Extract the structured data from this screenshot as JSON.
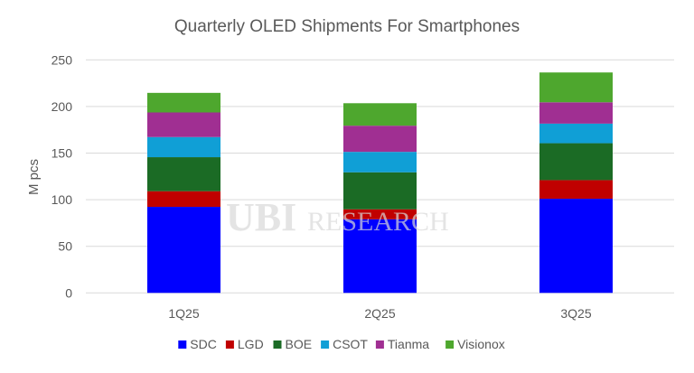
{
  "chart_data": {
    "type": "bar",
    "stacked": true,
    "title": "Quarterly OLED Shipments For Smartphones",
    "xlabel": "",
    "ylabel": "M pcs",
    "ylim": [
      0,
      250
    ],
    "yticks": [
      0,
      50,
      100,
      150,
      200,
      250
    ],
    "grid": true,
    "legend_position": "bottom",
    "categories": [
      "1Q25",
      "2Q25",
      "3Q25"
    ],
    "series": [
      {
        "name": "SDC",
        "color": "#0000ff",
        "values": [
          92.3,
          79.0,
          101.0
        ]
      },
      {
        "name": "LGD",
        "color": "#c00000",
        "values": [
          16.8,
          10.7,
          20.0
        ]
      },
      {
        "name": "BOE",
        "color": "#1b6b25",
        "values": [
          36.5,
          39.7,
          39.6
        ]
      },
      {
        "name": "CSOT",
        "color": "#109fd6",
        "values": [
          21.6,
          21.9,
          21.0
        ]
      },
      {
        "name": "Tianma",
        "color": "#a02f92",
        "values": [
          26.4,
          28.1,
          22.9
        ]
      },
      {
        "name": "Visionox",
        "color": "#4ea72e",
        "values": [
          21.0,
          24.1,
          32.0
        ]
      }
    ],
    "watermark": "UBI RESEARCH"
  }
}
